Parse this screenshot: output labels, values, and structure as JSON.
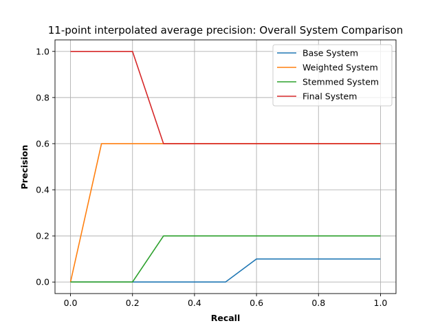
{
  "chart_data": {
    "type": "line",
    "title": "11-point interpolated average precision: Overall System Comparison",
    "xlabel": "Recall",
    "ylabel": "Precision",
    "xlim": [
      -0.05,
      1.05
    ],
    "ylim": [
      -0.05,
      1.05
    ],
    "xticks": [
      0.0,
      0.2,
      0.4,
      0.6,
      0.8,
      1.0
    ],
    "yticks": [
      0.0,
      0.2,
      0.4,
      0.6,
      0.8,
      1.0
    ],
    "xtick_labels": [
      "0.0",
      "0.2",
      "0.4",
      "0.6",
      "0.8",
      "1.0"
    ],
    "ytick_labels": [
      "0.0",
      "0.2",
      "0.4",
      "0.6",
      "0.8",
      "1.0"
    ],
    "grid": true,
    "legend_position": "top-right",
    "x": [
      0.0,
      0.1,
      0.2,
      0.3,
      0.4,
      0.5,
      0.6,
      0.7,
      0.8,
      0.9,
      1.0
    ],
    "series": [
      {
        "name": "Base System",
        "color": "#1f77b4",
        "values": [
          0.0,
          0.0,
          0.0,
          0.0,
          0.0,
          0.0,
          0.1,
          0.1,
          0.1,
          0.1,
          0.1
        ]
      },
      {
        "name": "Weighted System",
        "color": "#ff7f0e",
        "values": [
          0.0,
          0.6,
          0.6,
          0.6,
          0.6,
          0.6,
          0.6,
          0.6,
          0.6,
          0.6,
          0.6
        ]
      },
      {
        "name": "Stemmed System",
        "color": "#2ca02c",
        "values": [
          0.0,
          0.0,
          0.0,
          0.2,
          0.2,
          0.2,
          0.2,
          0.2,
          0.2,
          0.2,
          0.2
        ]
      },
      {
        "name": "Final System",
        "color": "#d62728",
        "values": [
          1.0,
          1.0,
          1.0,
          0.6,
          0.6,
          0.6,
          0.6,
          0.6,
          0.6,
          0.6,
          0.6
        ]
      }
    ]
  }
}
